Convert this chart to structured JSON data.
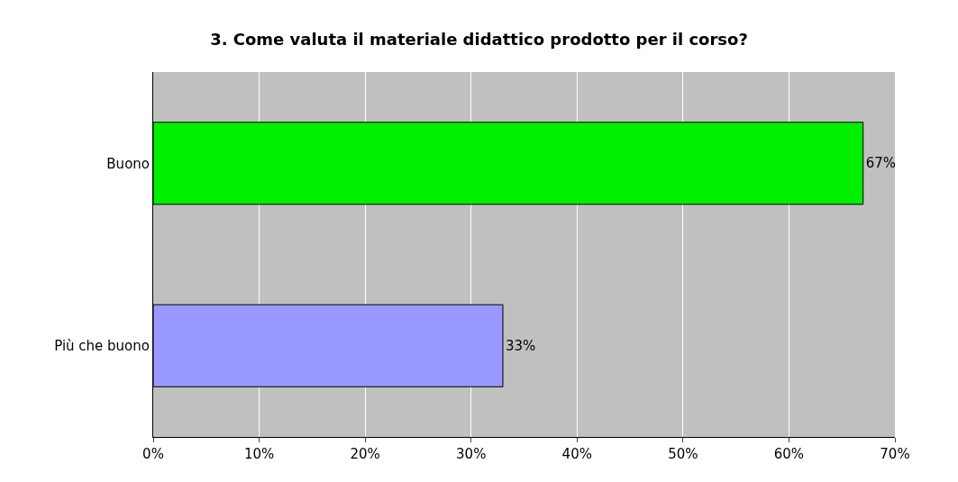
{
  "chart_data": {
    "type": "bar",
    "orientation": "horizontal",
    "title": "3. Come valuta il materiale didattico prodotto per il corso?",
    "categories": [
      "Buono",
      "Più che buono"
    ],
    "values": [
      67,
      33
    ],
    "colors": [
      "#00ee00",
      "#9999ff"
    ],
    "value_labels": [
      "67%",
      "33%"
    ],
    "xlim": [
      0,
      70
    ],
    "xticks": [
      {
        "value": 0,
        "label": "0%"
      },
      {
        "value": 10,
        "label": "10%"
      },
      {
        "value": 20,
        "label": "20%"
      },
      {
        "value": 30,
        "label": "30%"
      },
      {
        "value": 40,
        "label": "40%"
      },
      {
        "value": 50,
        "label": "50%"
      },
      {
        "value": 60,
        "label": "60%"
      },
      {
        "value": 70,
        "label": "70%"
      }
    ],
    "grid": "x"
  }
}
